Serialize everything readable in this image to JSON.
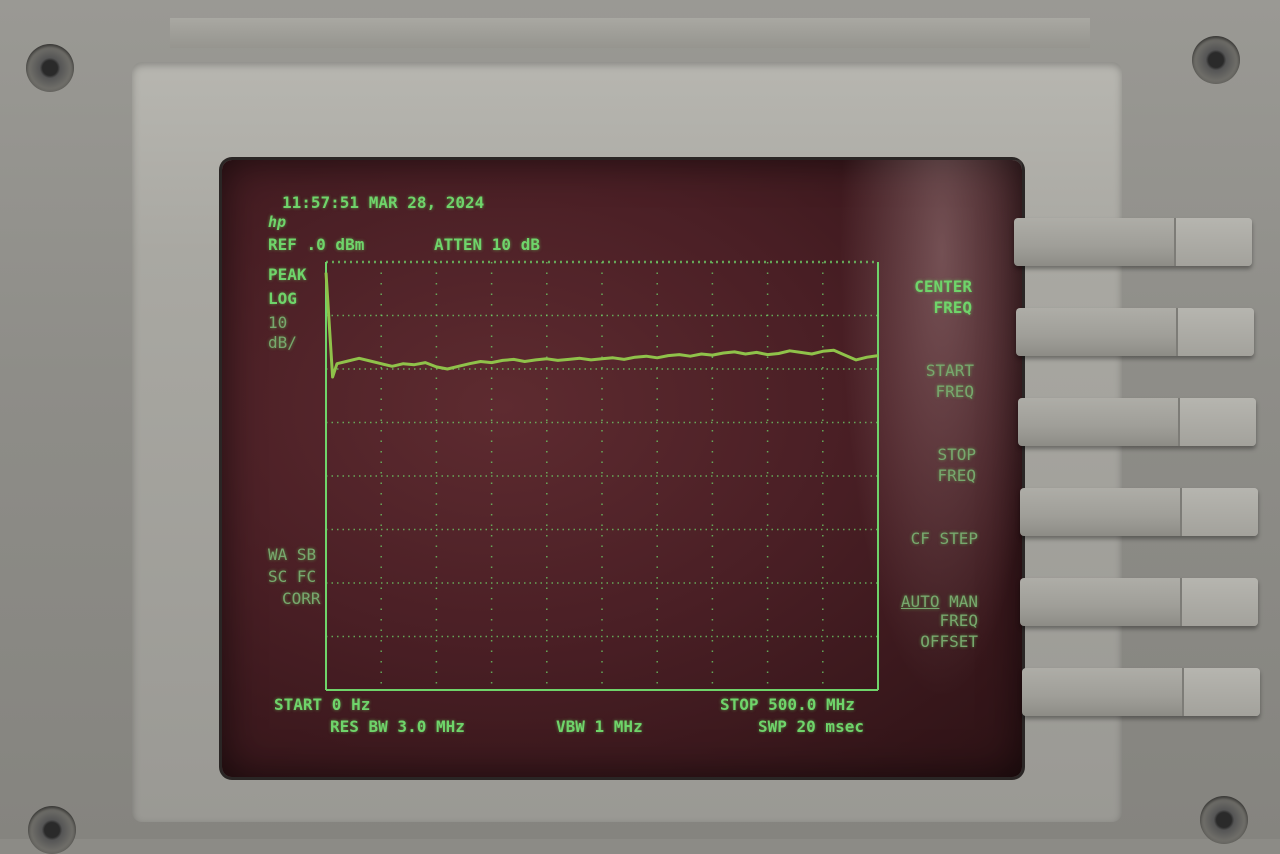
{
  "header": {
    "timestamp": "11:57:51 MAR 28, 2024",
    "logo": "hp",
    "ref_level": "REF .0 dBm",
    "attenuation": "ATTEN 10 dB"
  },
  "left_labels": {
    "detector": "PEAK",
    "scale": "LOG",
    "scale_per_div_1": "10",
    "scale_per_div_2": "dB/",
    "flags_1": "WA SB",
    "flags_2": "SC FC",
    "flags_3": "CORR"
  },
  "footer": {
    "start": "START 0 Hz",
    "stop": "STOP 500.0 MHz",
    "res_bw": "RES BW 3.0 MHz",
    "vbw": "VBW 1 MHz",
    "sweep": "SWP 20 msec"
  },
  "softkeys": [
    {
      "line1": "CENTER",
      "line2": "FREQ"
    },
    {
      "line1": "START",
      "line2": "FREQ"
    },
    {
      "line1": "STOP",
      "line2": "FREQ"
    },
    {
      "line1": "CF STEP",
      "line2_a": "AUTO",
      "line2_b": "MAN"
    },
    {
      "line1": "FREQ",
      "line2": "OFFSET"
    }
  ],
  "trace": {
    "x_start_mhz": 0,
    "x_stop_mhz": 500,
    "ref_dbm": 0,
    "db_per_div": 10,
    "divisions": 8,
    "levels_dbm": [
      -2,
      -19,
      -18.5,
      -18,
      -18.5,
      -19,
      -19.5,
      -19,
      -19.2,
      -18.8,
      -19.6,
      -20,
      -19.5,
      -19,
      -18.6,
      -18.8,
      -18.4,
      -18.2,
      -18.6,
      -18.3,
      -18.1,
      -18.4,
      -18.2,
      -18.0,
      -18.3,
      -18.1,
      -17.9,
      -18.2,
      -17.8,
      -17.6,
      -17.9,
      -17.5,
      -17.3,
      -17.6,
      -17.2,
      -17.4,
      -17.0,
      -16.8,
      -17.2,
      -16.9,
      -17.3,
      -17.1,
      -16.6,
      -16.9,
      -17.2,
      -16.7,
      -16.5,
      -17.4,
      -18.3,
      -17.8,
      -17.5
    ],
    "color": "#8fc24a"
  }
}
